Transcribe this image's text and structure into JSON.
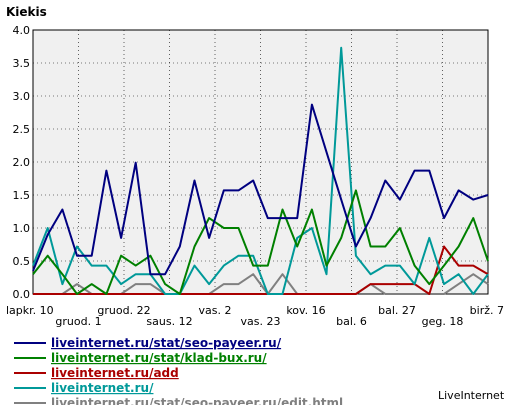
{
  "chart_data": {
    "type": "line",
    "title": "Kiekis",
    "ylim": [
      0,
      4.0
    ],
    "yticks": [
      "0.0",
      "0.5",
      "1.0",
      "1.5",
      "2.0",
      "2.5",
      "3.0",
      "3.5",
      "4.0"
    ],
    "x_ticks_row1": [
      "lapkr. 10",
      "gruod. 22",
      "vas. 2",
      "kov. 16",
      "bal. 27",
      "birž. 7"
    ],
    "x_ticks_row2": [
      "gruod. 1",
      "saus. 12",
      "vas. 23",
      "bal. 6",
      "geg. 18"
    ],
    "grid": true,
    "legend_position": "bottom",
    "series": [
      {
        "name": "liveinternet.ru/stat/seo-payeer.ru/",
        "color": "#000080",
        "values": [
          0.35,
          0.9,
          1.28,
          0.58,
          0.58,
          1.87,
          0.85,
          1.99,
          0.3,
          0.3,
          0.72,
          1.72,
          0.85,
          1.57,
          1.57,
          1.72,
          1.15,
          1.15,
          1.15,
          2.87,
          2.15,
          1.43,
          0.72,
          1.15,
          1.72,
          1.43,
          1.87,
          1.87,
          1.15,
          1.57,
          1.43,
          1.5
        ]
      },
      {
        "name": "liveinternet.ru/stat/klad-bux.ru/",
        "color": "#008000",
        "values": [
          0.3,
          0.58,
          0.3,
          0.0,
          0.15,
          0.0,
          0.58,
          0.43,
          0.58,
          0.15,
          0.0,
          0.72,
          1.15,
          1.0,
          1.0,
          0.43,
          0.43,
          1.28,
          0.72,
          1.28,
          0.43,
          0.85,
          1.57,
          0.72,
          0.72,
          1.0,
          0.43,
          0.15,
          0.43,
          0.72,
          1.15,
          0.5
        ]
      },
      {
        "name": "liveinternet.ru/add",
        "color": "#aa0000",
        "values": [
          0,
          0,
          0,
          0,
          0,
          0,
          0,
          0,
          0,
          0,
          0,
          0,
          0,
          0,
          0,
          0,
          0,
          0,
          0,
          0,
          0,
          0,
          0,
          0.15,
          0.15,
          0.15,
          0.15,
          0.0,
          0.72,
          0.43,
          0.43,
          0.3
        ]
      },
      {
        "name": "liveinternet.ru/",
        "color": "#009999",
        "values": [
          0.43,
          1.0,
          0.15,
          0.72,
          0.43,
          0.43,
          0.15,
          0.3,
          0.3,
          0.0,
          0.0,
          0.43,
          0.15,
          0.43,
          0.58,
          0.58,
          0.0,
          0.0,
          0.85,
          1.0,
          0.3,
          3.73,
          0.58,
          0.3,
          0.43,
          0.43,
          0.15,
          0.85,
          0.15,
          0.3,
          0.0,
          0.3
        ]
      },
      {
        "name": "liveinternet.ru/stat/seo-payeer.ru/edit.html",
        "color": "#808080",
        "values": [
          0,
          0,
          0,
          0.15,
          0,
          0,
          0,
          0.15,
          0.15,
          0,
          0,
          0,
          0,
          0.15,
          0.15,
          0.3,
          0,
          0.3,
          0,
          0,
          0,
          0,
          0,
          0.15,
          0,
          0,
          0,
          0,
          0,
          0.15,
          0.3,
          0.15
        ]
      }
    ]
  },
  "footer": {
    "brand": "LiveInternet"
  }
}
